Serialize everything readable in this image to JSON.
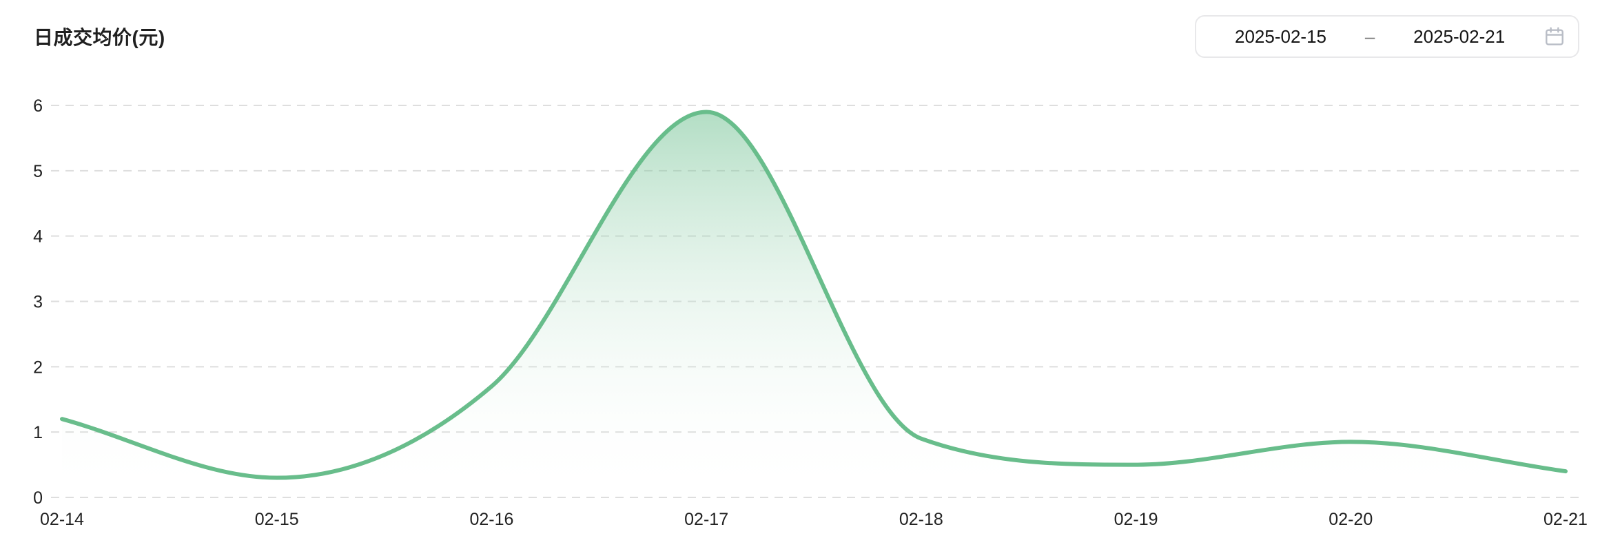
{
  "header": {
    "title": "日成交均价(元)"
  },
  "date_range_picker": {
    "start_date": "2025-02-15",
    "separator": "–",
    "end_date": "2025-02-21"
  },
  "icons": {
    "calendar": "calendar-icon"
  },
  "colors": {
    "line": "#68bd8b",
    "fill_top": "rgba(104, 189, 139, 0.52)",
    "fill_bottom": "rgba(255, 255, 255, 0)",
    "gridline": "#dedede",
    "axis_text": "#222222",
    "border": "#e8e8ea",
    "icon": "#b9bdc6"
  },
  "chart_data": {
    "type": "area",
    "title": "日成交均价(元)",
    "x": [
      "02-14",
      "02-15",
      "02-16",
      "02-17",
      "02-18",
      "02-19",
      "02-20",
      "02-21"
    ],
    "values": [
      1.2,
      0.3,
      1.7,
      5.9,
      0.9,
      0.5,
      0.85,
      0.4
    ],
    "xlabel": "",
    "ylabel": "日成交均价(元)",
    "ylim": [
      0,
      6
    ],
    "yticks": [
      0,
      1,
      2,
      3,
      4,
      5,
      6
    ],
    "grid": "dashed-horizontal",
    "smooth": true,
    "legend": "none"
  }
}
